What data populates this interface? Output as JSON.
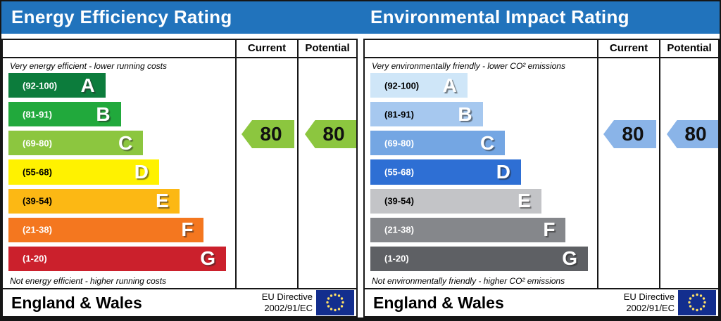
{
  "header": {
    "left_title": "Energy Efficiency Rating",
    "right_title": "Environmental Impact Rating"
  },
  "chart_data": [
    {
      "type": "bar",
      "title": "Energy Efficiency Rating",
      "categories": [
        "A (92-100)",
        "B (81-91)",
        "C (69-80)",
        "D (55-68)",
        "E (39-54)",
        "F (21-38)",
        "G (1-20)"
      ],
      "series": [
        {
          "name": "Current",
          "values": [
            80
          ]
        },
        {
          "name": "Potential",
          "values": [
            80
          ]
        }
      ],
      "current": 80,
      "current_band": "C",
      "potential": 80,
      "potential_band": "C",
      "scale_range": [
        1,
        100
      ],
      "top_note": "Very energy efficient - lower running costs",
      "bottom_note": "Not energy efficient - higher running costs",
      "region": "England & Wales",
      "directive": "EU Directive 2002/91/EC"
    },
    {
      "type": "bar",
      "title": "Environmental Impact Rating",
      "categories": [
        "A (92-100)",
        "B (81-91)",
        "C (69-80)",
        "D (55-68)",
        "E (39-54)",
        "F (21-38)",
        "G (1-20)"
      ],
      "series": [
        {
          "name": "Current",
          "values": [
            80
          ]
        },
        {
          "name": "Potential",
          "values": [
            80
          ]
        }
      ],
      "current": 80,
      "current_band": "C",
      "potential": 80,
      "potential_band": "C",
      "scale_range": [
        1,
        100
      ],
      "top_note": "Very environmentally friendly - lower CO² emissions",
      "bottom_note": "Not environmentally friendly - higher CO² emissions",
      "region": "England & Wales",
      "directive": "EU Directive 2002/91/EC"
    }
  ],
  "panels": [
    {
      "title": "Energy Efficiency Rating",
      "current_label": "Current",
      "potential_label": "Potential",
      "top_note": "Very energy efficient - lower running costs",
      "bottom_note": "Not energy efficient - higher running costs",
      "bands": [
        {
          "letter": "A",
          "range": "(92-100)",
          "color": "#0c7c3c",
          "range_color": "#ffffff",
          "width_pct": 43.6
        },
        {
          "letter": "B",
          "range": "(81-91)",
          "color": "#21a93c",
          "range_color": "#ffffff",
          "width_pct": 50.5
        },
        {
          "letter": "C",
          "range": "(69-80)",
          "color": "#8cc63f",
          "range_color": "#ffffff",
          "width_pct": 60.5
        },
        {
          "letter": "D",
          "range": "(55-68)",
          "color": "#fff200",
          "range_color": "#000000",
          "width_pct": 67.7
        },
        {
          "letter": "E",
          "range": "(39-54)",
          "color": "#fcb814",
          "range_color": "#000000",
          "width_pct": 76.8
        },
        {
          "letter": "F",
          "range": "(21-38)",
          "color": "#f4771f",
          "range_color": "#ffffff",
          "width_pct": 87.8
        },
        {
          "letter": "G",
          "range": "(1-20)",
          "color": "#cb202c",
          "range_color": "#ffffff",
          "width_pct": 97.8
        }
      ],
      "current": {
        "value": "80",
        "arrow_color": "#8cc63f"
      },
      "potential": {
        "value": "80",
        "arrow_color": "#8cc63f"
      },
      "footer": {
        "region": "England & Wales",
        "directive_line1": "EU Directive",
        "directive_line2": "2002/91/EC"
      },
      "flag": {
        "bg": "#132e8e",
        "star_color": "#ffe066"
      }
    },
    {
      "title": "Environmental Impact Rating",
      "current_label": "Current",
      "potential_label": "Potential",
      "top_note": "Very environmentally friendly - lower CO² emissions",
      "bottom_note": "Not environmentally friendly - higher CO² emissions",
      "bands": [
        {
          "letter": "A",
          "range": "(92-100)",
          "color": "#cfe6f8",
          "range_color": "#000000",
          "width_pct": 43.6
        },
        {
          "letter": "B",
          "range": "(81-91)",
          "color": "#a6c8ef",
          "range_color": "#000000",
          "width_pct": 50.5
        },
        {
          "letter": "C",
          "range": "(69-80)",
          "color": "#74a6e3",
          "range_color": "#ffffff",
          "width_pct": 60.5
        },
        {
          "letter": "D",
          "range": "(55-68)",
          "color": "#2e6fd4",
          "range_color": "#ffffff",
          "width_pct": 67.7
        },
        {
          "letter": "E",
          "range": "(39-54)",
          "color": "#c3c4c7",
          "range_color": "#000000",
          "width_pct": 76.8
        },
        {
          "letter": "F",
          "range": "(21-38)",
          "color": "#85878b",
          "range_color": "#ffffff",
          "width_pct": 87.8
        },
        {
          "letter": "G",
          "range": "(1-20)",
          "color": "#5e6064",
          "range_color": "#ffffff",
          "width_pct": 97.8
        }
      ],
      "current": {
        "value": "80",
        "arrow_color": "#8ab4e8"
      },
      "potential": {
        "value": "80",
        "arrow_color": "#8ab4e8"
      },
      "footer": {
        "region": "England & Wales",
        "directive_line1": "EU Directive",
        "directive_line2": "2002/91/EC"
      },
      "flag": {
        "bg": "#132e8e",
        "star_color": "#ffe066"
      }
    }
  ]
}
